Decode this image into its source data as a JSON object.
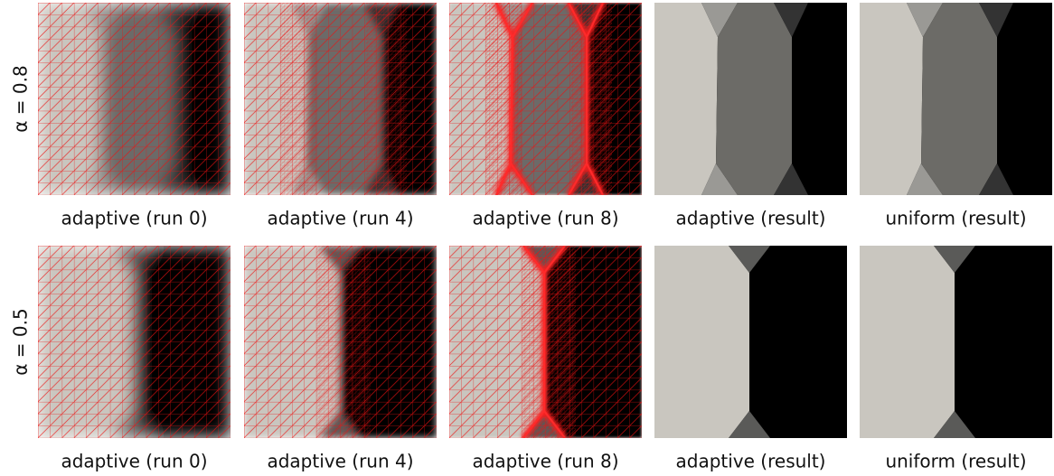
{
  "rows": [
    {
      "label": "α = 0.8",
      "panels": [
        "adaptive (run 0)",
        "adaptive (run 4)",
        "adaptive (run 8)",
        "adaptive (result)",
        "uniform (result)"
      ]
    },
    {
      "label": "α = 0.5",
      "panels": [
        "adaptive (run 0)",
        "adaptive (run 4)",
        "adaptive (run 8)",
        "adaptive (result)",
        "uniform (result)"
      ]
    }
  ]
}
